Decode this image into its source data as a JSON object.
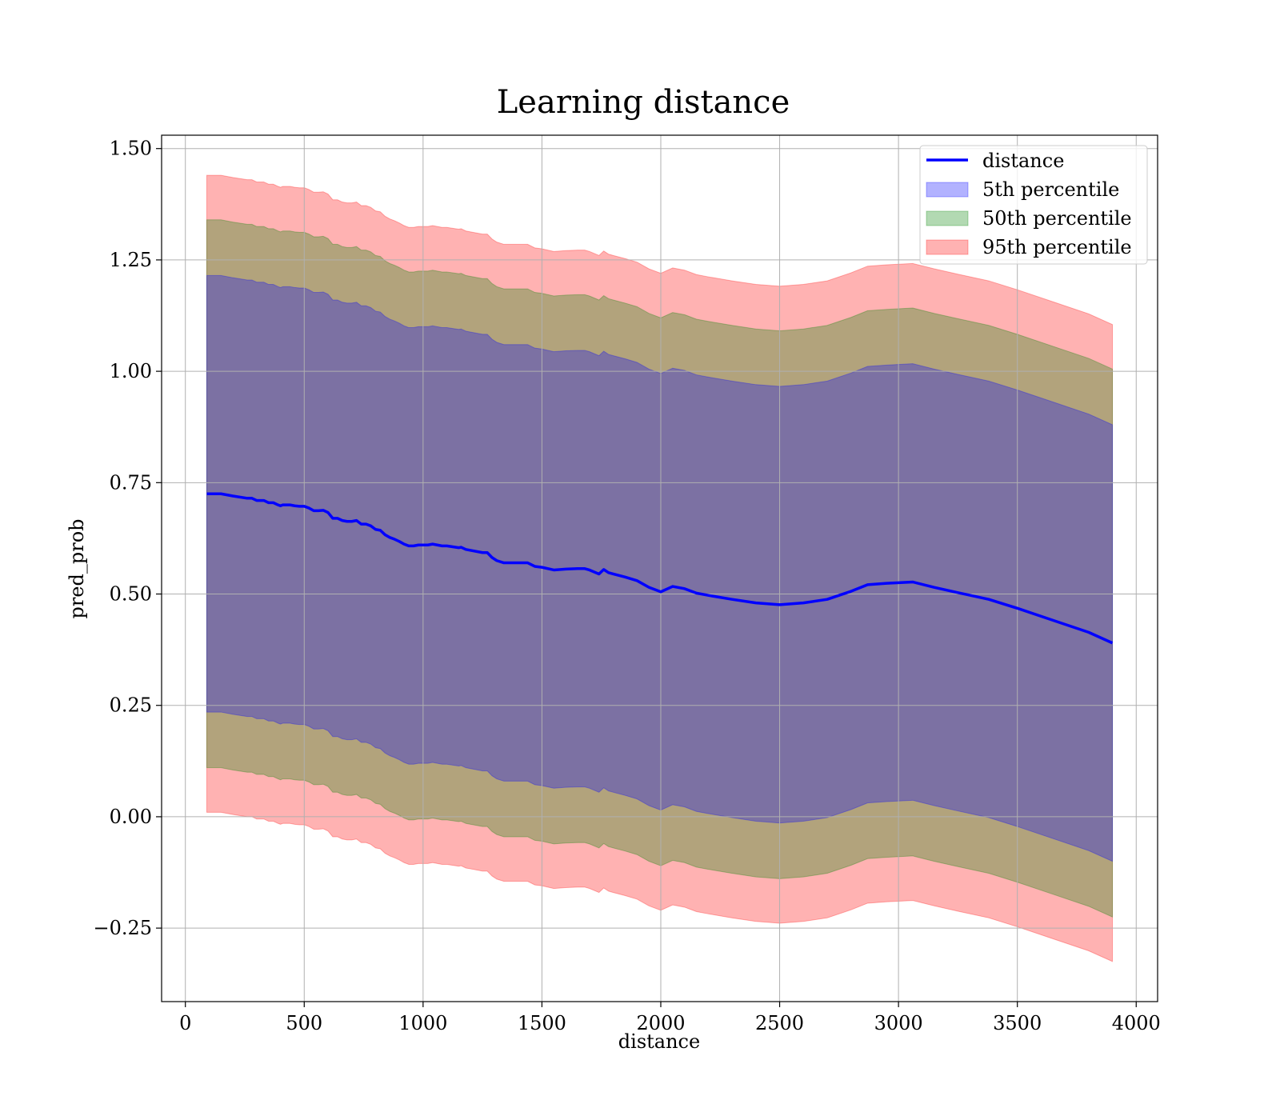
{
  "chart_data": {
    "type": "area",
    "title": "Learning distance",
    "xlabel": "distance",
    "ylabel": "pred_prob",
    "xlim": [
      -100,
      4090
    ],
    "ylim": [
      -0.415,
      1.53
    ],
    "xticks": [
      0,
      500,
      1000,
      1500,
      2000,
      2500,
      3000,
      3500,
      4000
    ],
    "xtick_labels": [
      "0",
      "500",
      "1000",
      "1500",
      "2000",
      "2500",
      "3000",
      "3500",
      "4000"
    ],
    "yticks": [
      -0.25,
      0.0,
      0.25,
      0.5,
      0.75,
      1.0,
      1.25,
      1.5
    ],
    "ytick_labels": [
      "−0.25",
      "0.00",
      "0.25",
      "0.50",
      "0.75",
      "1.00",
      "1.25",
      "1.50"
    ],
    "grid": true,
    "legend_position": "top-right",
    "x": [
      90,
      150,
      200,
      260,
      280,
      300,
      330,
      350,
      370,
      390,
      400,
      410,
      420,
      440,
      460,
      480,
      500,
      520,
      540,
      560,
      580,
      600,
      620,
      640,
      660,
      680,
      700,
      720,
      740,
      760,
      780,
      800,
      820,
      840,
      860,
      880,
      900,
      920,
      940,
      960,
      980,
      1000,
      1020,
      1040,
      1060,
      1080,
      1100,
      1150,
      1160,
      1180,
      1200,
      1250,
      1270,
      1290,
      1310,
      1340,
      1380,
      1410,
      1440,
      1470,
      1500,
      1550,
      1600,
      1650,
      1680,
      1700,
      1740,
      1760,
      1780,
      1800,
      1850,
      1900,
      1950,
      2000,
      2050,
      2100,
      2150,
      2200,
      2300,
      2400,
      2500,
      2600,
      2700,
      2800,
      2870,
      2950,
      3060,
      3150,
      3250,
      3380,
      3500,
      3650,
      3800,
      3900
    ],
    "series": [
      {
        "name": "distance",
        "kind": "line",
        "color": "#0000ff",
        "values": [
          0.725,
          0.725,
          0.72,
          0.715,
          0.715,
          0.71,
          0.71,
          0.705,
          0.705,
          0.7,
          0.698,
          0.7,
          0.7,
          0.7,
          0.698,
          0.697,
          0.697,
          0.693,
          0.687,
          0.687,
          0.688,
          0.683,
          0.67,
          0.67,
          0.665,
          0.663,
          0.663,
          0.665,
          0.657,
          0.657,
          0.653,
          0.645,
          0.643,
          0.633,
          0.627,
          0.623,
          0.618,
          0.612,
          0.608,
          0.608,
          0.61,
          0.61,
          0.61,
          0.612,
          0.61,
          0.608,
          0.608,
          0.604,
          0.605,
          0.6,
          0.598,
          0.593,
          0.593,
          0.582,
          0.575,
          0.57,
          0.57,
          0.57,
          0.57,
          0.562,
          0.56,
          0.554,
          0.556,
          0.557,
          0.557,
          0.554,
          0.545,
          0.555,
          0.548,
          0.545,
          0.538,
          0.53,
          0.515,
          0.505,
          0.517,
          0.512,
          0.502,
          0.497,
          0.488,
          0.48,
          0.476,
          0.48,
          0.488,
          0.506,
          0.521,
          0.524,
          0.527,
          0.515,
          0.503,
          0.488,
          0.468,
          0.441,
          0.414,
          0.39
        ]
      },
      {
        "name": "5th percentile",
        "kind": "band",
        "color": "#0000ff",
        "lower_offset": -0.49,
        "upper_offset": 0.49
      },
      {
        "name": "50th percentile",
        "kind": "band",
        "color": "#008000",
        "lower_offset": -0.615,
        "upper_offset": 0.615
      },
      {
        "name": "95th percentile",
        "kind": "band",
        "color": "#ff0000",
        "lower_offset": -0.715,
        "upper_offset": 0.715
      }
    ]
  }
}
